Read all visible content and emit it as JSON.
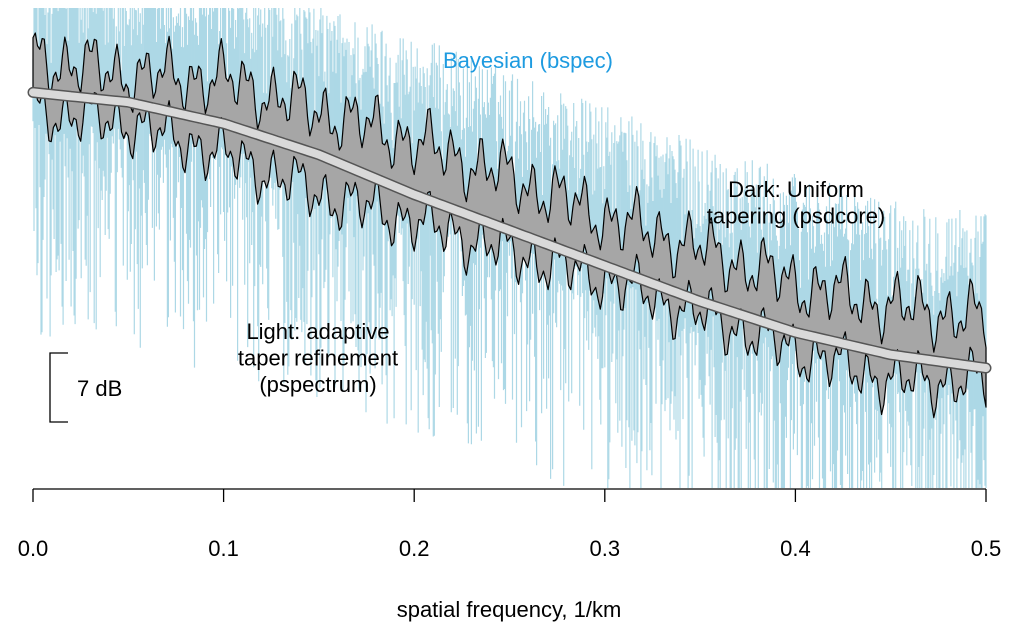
{
  "chart_data": {
    "type": "area",
    "title": "",
    "xlabel": "spatial frequency, 1/km",
    "ylabel": "",
    "xlim": [
      0.0,
      0.5
    ],
    "xticks": [
      {
        "value": 0.0,
        "label": "0.0"
      },
      {
        "value": 0.1,
        "label": "0.1"
      },
      {
        "value": 0.2,
        "label": "0.2"
      },
      {
        "value": 0.3,
        "label": "0.3"
      },
      {
        "value": 0.4,
        "label": "0.4"
      },
      {
        "value": 0.5,
        "label": "0.5"
      }
    ],
    "ylim_db": [
      -48,
      6
    ],
    "y_axis_shown": false,
    "grid": false,
    "scale_bar": {
      "label": "7 dB",
      "span_db": 7
    },
    "annotations": [
      {
        "id": "bspec",
        "lines": [
          "Bayesian (bspec)"
        ],
        "color": "#1E9BE0"
      },
      {
        "id": "psdcore",
        "lines": [
          "Dark: Uniform",
          "tapering (psdcore)"
        ],
        "color": "#000000"
      },
      {
        "id": "pspectrum",
        "lines": [
          "Light: adaptive",
          "taper refinement",
          "(pspectrum)"
        ],
        "color": "#000000"
      }
    ],
    "series": [
      {
        "id": "bspec",
        "style": "dense noisy spikes",
        "color": "#ADD8E6",
        "x": [
          0.0,
          0.05,
          0.1,
          0.15,
          0.2,
          0.25,
          0.3,
          0.35,
          0.4,
          0.45,
          0.5
        ],
        "median_db": [
          -3.5,
          -4.5,
          -6.5,
          -9.5,
          -13,
          -17,
          -21,
          -25,
          -28.5,
          -31.5,
          -32.5
        ],
        "spread_db": 16
      },
      {
        "id": "psdcore",
        "style": "shaded band",
        "color": "#A6A6A6",
        "x": [
          0.0,
          0.05,
          0.1,
          0.15,
          0.2,
          0.25,
          0.3,
          0.35,
          0.4,
          0.45,
          0.5
        ],
        "upper_db": [
          0.5,
          -1.5,
          -2,
          -5.5,
          -9,
          -13,
          -17.5,
          -21,
          -25,
          -27.5,
          -29
        ],
        "lower_db": [
          -5.5,
          -7,
          -10.5,
          -15,
          -18,
          -21.5,
          -24.5,
          -28.5,
          -32.5,
          -36,
          -36
        ]
      },
      {
        "id": "pspectrum",
        "style": "smooth light line",
        "color": "#D9D9D9",
        "x": [
          0.0,
          0.05,
          0.1,
          0.15,
          0.2,
          0.25,
          0.3,
          0.35,
          0.4,
          0.45,
          0.5
        ],
        "y_db": [
          -3.5,
          -4.6,
          -7,
          -10.5,
          -15,
          -19,
          -23,
          -27,
          -30.5,
          -33,
          -34.5
        ]
      }
    ]
  }
}
